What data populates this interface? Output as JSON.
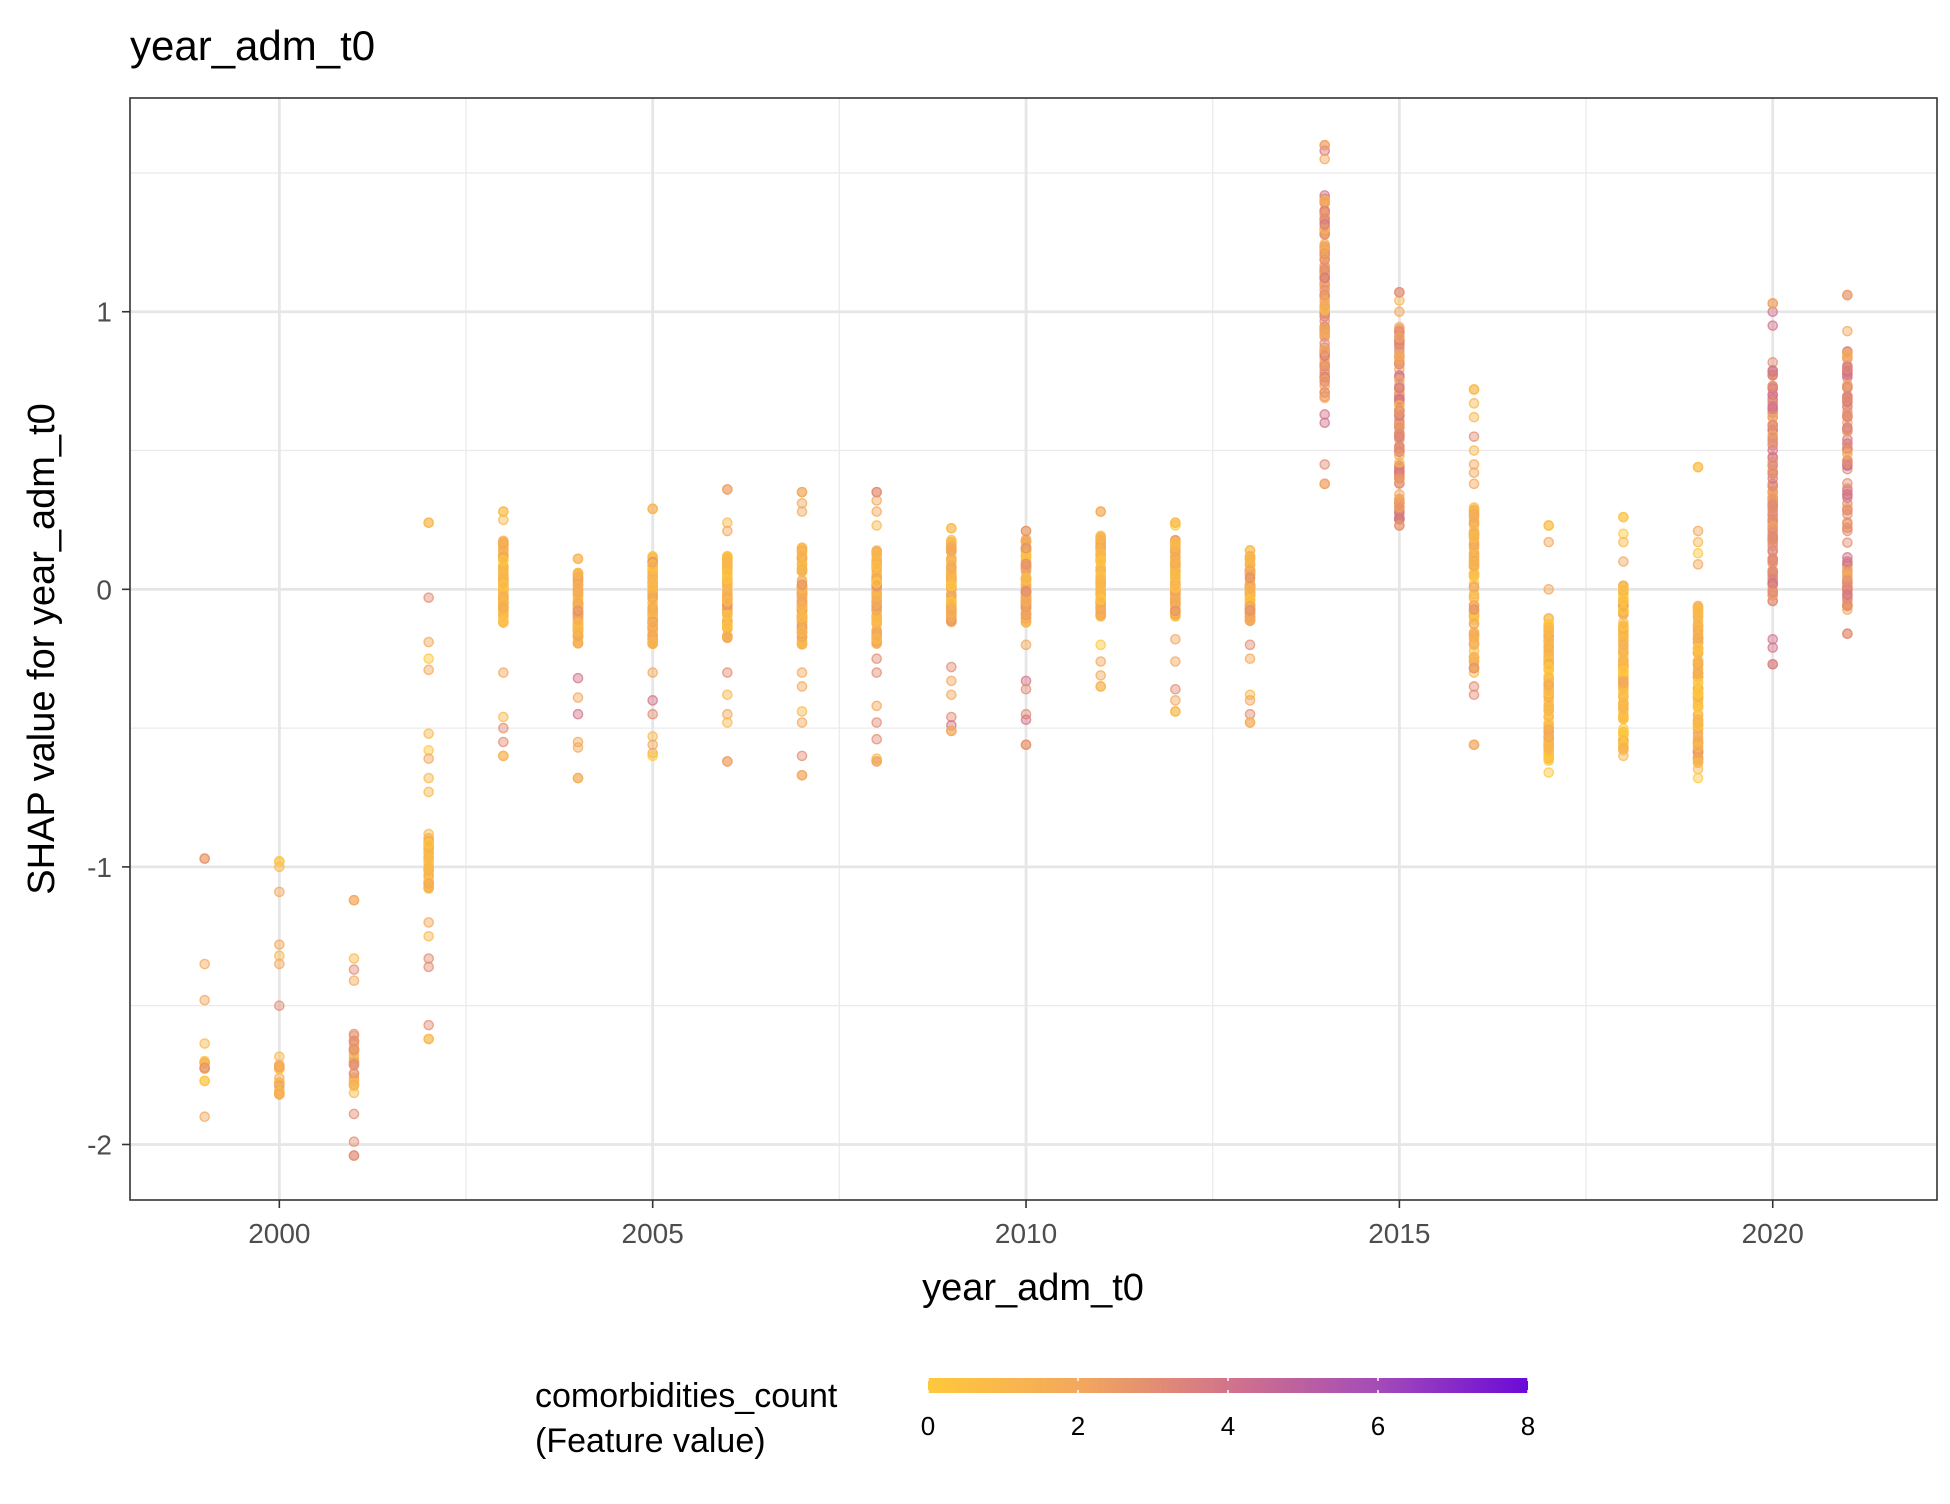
{
  "chart_data": {
    "type": "scatter",
    "title": "year_adm_t0",
    "xlabel": "year_adm_t0",
    "ylabel": "SHAP value for year_adm_t0",
    "xlim": [
      1998,
      2022.2
    ],
    "ylim": [
      -2.2,
      1.77
    ],
    "x_ticks": [
      2000,
      2005,
      2010,
      2015,
      2020
    ],
    "x_tick_labels": [
      "2000",
      "2005",
      "2010",
      "2015",
      "2020"
    ],
    "y_ticks": [
      -2,
      -1,
      0,
      1
    ],
    "y_tick_labels": [
      "-2",
      "-1",
      "0",
      "1"
    ],
    "grid": true,
    "legend_position": "bottom",
    "color_scale": {
      "title_line1": "comorbidities_count",
      "title_line2": "(Feature value)",
      "min": 0,
      "max": 8,
      "ticks": [
        0,
        2,
        4,
        6,
        8
      ],
      "tick_labels": [
        "0",
        "2",
        "4",
        "6",
        "8"
      ],
      "low_color": "#ffc83c",
      "mid_color": "#d2748a",
      "high_color": "#6a0ad8"
    },
    "groups": [
      {
        "x": 1999,
        "core": [
          -1.85,
          -1.62
        ],
        "range": [
          -1.9,
          -0.97
        ],
        "low_outliers": [],
        "high_outliers": [
          -0.97,
          -1.35,
          -1.48
        ],
        "n": 10,
        "comorb_mean": 1.5
      },
      {
        "x": 2000,
        "core": [
          -1.82,
          -1.68
        ],
        "range": [
          -1.82,
          -0.98
        ],
        "low_outliers": [],
        "high_outliers": [
          -0.98,
          -1.0,
          -1.09,
          -1.28,
          -1.32,
          -1.35,
          -1.5
        ],
        "n": 16,
        "comorb_mean": 1.4
      },
      {
        "x": 2001,
        "core": [
          -1.82,
          -1.58
        ],
        "range": [
          -2.04,
          -1.12
        ],
        "low_outliers": [
          -1.89,
          -1.99,
          -2.04
        ],
        "high_outliers": [
          -1.12,
          -1.33,
          -1.37,
          -1.41
        ],
        "n": 24,
        "comorb_mean": 2.0
      },
      {
        "x": 2002,
        "core": [
          -1.08,
          -0.88
        ],
        "range": [
          -1.62,
          0.24
        ],
        "low_outliers": [
          -1.2,
          -1.25,
          -1.33,
          -1.36,
          -1.57,
          -1.62
        ],
        "high_outliers": [
          0.24,
          -0.03,
          -0.19,
          -0.25,
          -0.29,
          -0.52,
          -0.58,
          -0.61,
          -0.68,
          -0.73
        ],
        "n": 40,
        "comorb_mean": 1.2
      },
      {
        "x": 2003,
        "core": [
          -0.12,
          0.18
        ],
        "range": [
          -0.6,
          0.28
        ],
        "low_outliers": [
          -0.3,
          -0.46,
          -0.5,
          -0.55,
          -0.6
        ],
        "high_outliers": [
          0.28,
          0.25
        ],
        "n": 90,
        "comorb_mean": 1.0
      },
      {
        "x": 2004,
        "core": [
          -0.2,
          0.06
        ],
        "range": [
          -0.68,
          0.11
        ],
        "low_outliers": [
          -0.32,
          -0.39,
          -0.45,
          -0.55,
          -0.57,
          -0.68
        ],
        "high_outliers": [
          0.11
        ],
        "n": 80,
        "comorb_mean": 1.5
      },
      {
        "x": 2005,
        "core": [
          -0.2,
          0.12
        ],
        "range": [
          -0.6,
          0.29
        ],
        "low_outliers": [
          -0.3,
          -0.4,
          -0.45,
          -0.53,
          -0.56,
          -0.59
        ],
        "high_outliers": [
          0.29
        ],
        "n": 90,
        "comorb_mean": 1.5
      },
      {
        "x": 2006,
        "core": [
          -0.18,
          0.12
        ],
        "range": [
          -0.62,
          0.36
        ],
        "low_outliers": [
          -0.3,
          -0.38,
          -0.45,
          -0.48,
          -0.62
        ],
        "high_outliers": [
          0.36,
          0.24,
          0.21
        ],
        "n": 90,
        "comorb_mean": 1.4
      },
      {
        "x": 2007,
        "core": [
          -0.2,
          0.15
        ],
        "range": [
          -0.67,
          0.35
        ],
        "low_outliers": [
          -0.3,
          -0.35,
          -0.44,
          -0.48,
          -0.6,
          -0.67
        ],
        "high_outliers": [
          0.35,
          0.31,
          0.28
        ],
        "n": 90,
        "comorb_mean": 1.5
      },
      {
        "x": 2008,
        "core": [
          -0.2,
          0.14
        ],
        "range": [
          -0.62,
          0.35
        ],
        "low_outliers": [
          -0.25,
          -0.3,
          -0.42,
          -0.48,
          -0.54,
          -0.61,
          -0.62
        ],
        "high_outliers": [
          0.35,
          0.32,
          0.28,
          0.23
        ],
        "n": 90,
        "comorb_mean": 1.5
      },
      {
        "x": 2009,
        "core": [
          -0.12,
          0.18
        ],
        "range": [
          -0.51,
          0.22
        ],
        "low_outliers": [
          -0.28,
          -0.33,
          -0.38,
          -0.46,
          -0.49,
          -0.51
        ],
        "high_outliers": [
          0.22
        ],
        "n": 90,
        "comorb_mean": 1.6
      },
      {
        "x": 2010,
        "core": [
          -0.12,
          0.18
        ],
        "range": [
          -0.56,
          0.21
        ],
        "low_outliers": [
          -0.2,
          -0.33,
          -0.36,
          -0.45,
          -0.47,
          -0.56
        ],
        "high_outliers": [
          0.21
        ],
        "n": 90,
        "comorb_mean": 1.7
      },
      {
        "x": 2011,
        "core": [
          -0.1,
          0.2
        ],
        "range": [
          -0.35,
          0.28
        ],
        "low_outliers": [
          -0.2,
          -0.26,
          -0.31,
          -0.35
        ],
        "high_outliers": [
          0.28
        ],
        "n": 90,
        "comorb_mean": 1.2
      },
      {
        "x": 2012,
        "core": [
          -0.1,
          0.18
        ],
        "range": [
          -0.44,
          0.24
        ],
        "low_outliers": [
          -0.18,
          -0.26,
          -0.36,
          -0.4,
          -0.44
        ],
        "high_outliers": [
          0.24,
          0.23
        ],
        "n": 90,
        "comorb_mean": 1.4
      },
      {
        "x": 2013,
        "core": [
          -0.12,
          0.12
        ],
        "range": [
          -0.48,
          0.14
        ],
        "low_outliers": [
          -0.2,
          -0.25,
          -0.38,
          -0.4,
          -0.45,
          -0.48
        ],
        "high_outliers": [
          0.14
        ],
        "n": 80,
        "comorb_mean": 1.5
      },
      {
        "x": 2014,
        "core": [
          0.68,
          1.42
        ],
        "range": [
          0.38,
          1.6
        ],
        "low_outliers": [
          0.38,
          0.45,
          0.6,
          0.63
        ],
        "high_outliers": [
          1.6,
          1.58,
          1.55
        ],
        "n": 110,
        "comorb_mean": 2.5
      },
      {
        "x": 2015,
        "core": [
          0.25,
          0.95
        ],
        "range": [
          0.23,
          1.07
        ],
        "low_outliers": [
          0.23
        ],
        "high_outliers": [
          1.07,
          1.04,
          1.0
        ],
        "n": 110,
        "comorb_mean": 2.8
      },
      {
        "x": 2016,
        "core": [
          -0.3,
          0.3
        ],
        "range": [
          -0.56,
          0.72
        ],
        "low_outliers": [
          -0.35,
          -0.38,
          -0.56
        ],
        "high_outliers": [
          0.72,
          0.67,
          0.62,
          0.55,
          0.5,
          0.45,
          0.42,
          0.38
        ],
        "n": 80,
        "comorb_mean": 1.5
      },
      {
        "x": 2017,
        "core": [
          -0.62,
          -0.1
        ],
        "range": [
          -0.66,
          0.23
        ],
        "low_outliers": [],
        "high_outliers": [
          0.23,
          0.17,
          0.0
        ],
        "n": 110,
        "comorb_mean": 0.8
      },
      {
        "x": 2018,
        "core": [
          -0.58,
          0.02
        ],
        "range": [
          -0.6,
          0.26
        ],
        "low_outliers": [],
        "high_outliers": [
          0.26,
          0.2,
          0.17,
          0.1
        ],
        "n": 110,
        "comorb_mean": 1.0
      },
      {
        "x": 2019,
        "core": [
          -0.65,
          -0.06
        ],
        "range": [
          -0.68,
          0.44
        ],
        "low_outliers": [],
        "high_outliers": [
          0.44,
          0.21,
          0.17,
          0.13,
          0.09
        ],
        "n": 110,
        "comorb_mean": 0.9
      },
      {
        "x": 2020,
        "core": [
          -0.05,
          0.82
        ],
        "range": [
          -0.27,
          1.03
        ],
        "low_outliers": [
          -0.18,
          -0.21,
          -0.27
        ],
        "high_outliers": [
          1.03,
          1.0,
          0.95
        ],
        "n": 110,
        "comorb_mean": 3.0
      },
      {
        "x": 2021,
        "core": [
          -0.08,
          0.87
        ],
        "range": [
          -0.16,
          1.06
        ],
        "low_outliers": [
          -0.16
        ],
        "high_outliers": [
          1.06,
          0.93
        ],
        "n": 100,
        "comorb_mean": 3.0
      }
    ]
  }
}
